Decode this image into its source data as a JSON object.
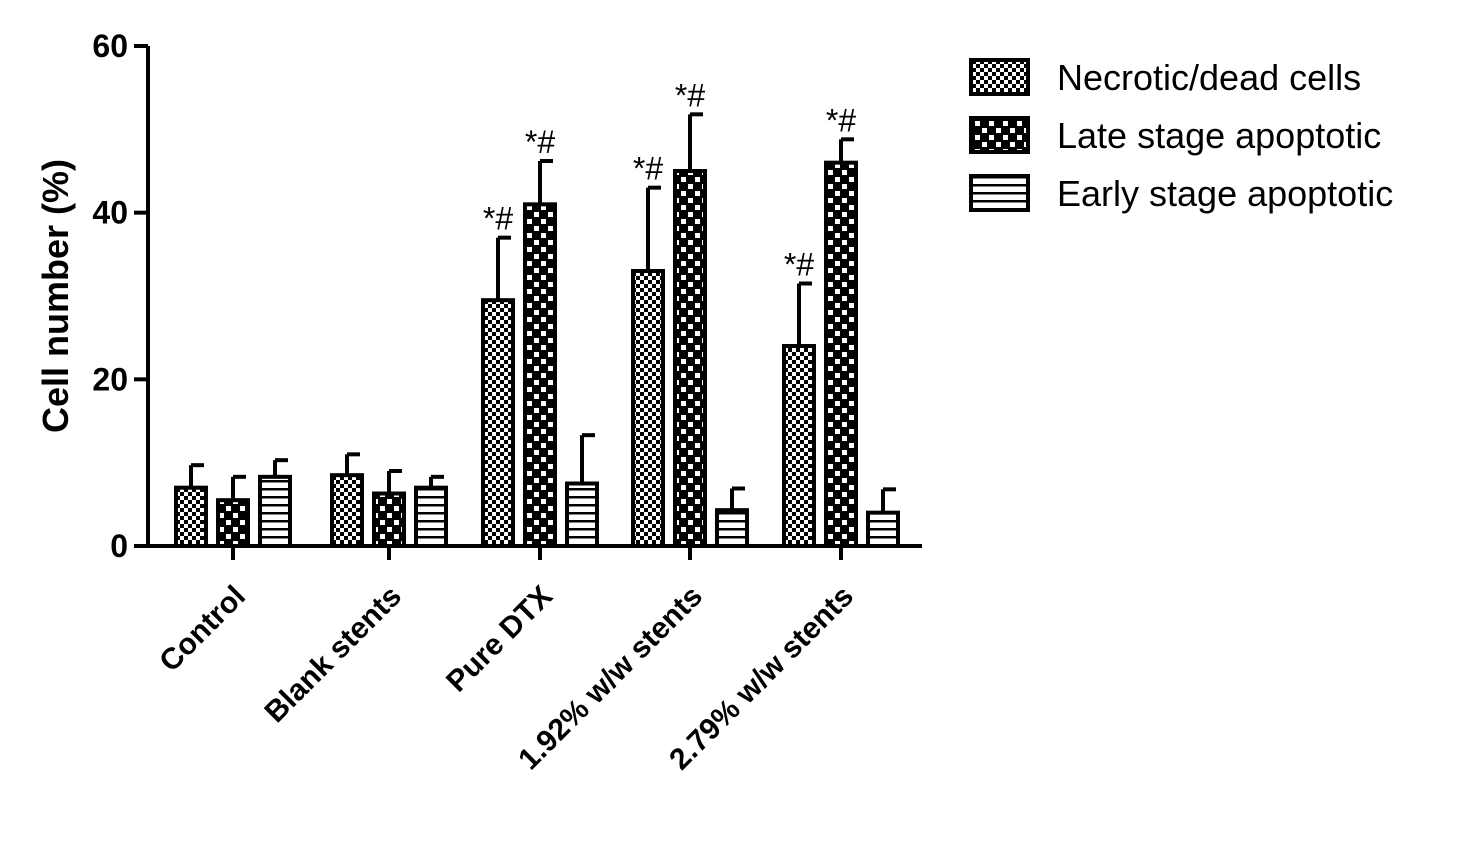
{
  "chart_data": {
    "type": "bar",
    "title": "",
    "xlabel": "",
    "ylabel": "Cell number (%)",
    "ylim": [
      0,
      60
    ],
    "yticks": [
      0,
      20,
      40,
      60
    ],
    "grid": false,
    "legend_position": "top-right",
    "categories": [
      "Control",
      "Blank stents",
      "Pure DTX",
      "1.92% w/w stents",
      "2.79% w/w stents"
    ],
    "series": [
      {
        "name": "Necrotic/dead cells",
        "pattern": "fine-checker",
        "values": [
          7,
          8.5,
          29.5,
          33,
          24
        ],
        "errors": [
          2.7,
          2.5,
          7.5,
          10,
          7.5
        ],
        "annotations": [
          "",
          "",
          "*#",
          "*#",
          "*#"
        ]
      },
      {
        "name": "Late stage apoptotic",
        "pattern": "coarse-checker",
        "values": [
          5.5,
          6.3,
          41,
          45,
          46
        ],
        "errors": [
          2.8,
          2.7,
          5.2,
          6.8,
          2.8
        ],
        "annotations": [
          "",
          "",
          "*#",
          "*#",
          "*#"
        ]
      },
      {
        "name": "Early stage apoptotic",
        "pattern": "horizontal-lines",
        "values": [
          8.3,
          7,
          7.5,
          4.3,
          4
        ],
        "errors": [
          2,
          1.3,
          5.8,
          2.6,
          2.8
        ],
        "annotations": [
          "",
          "",
          "",
          "",
          ""
        ]
      }
    ]
  },
  "colors": {
    "ink": "#000000",
    "background": "#ffffff"
  }
}
